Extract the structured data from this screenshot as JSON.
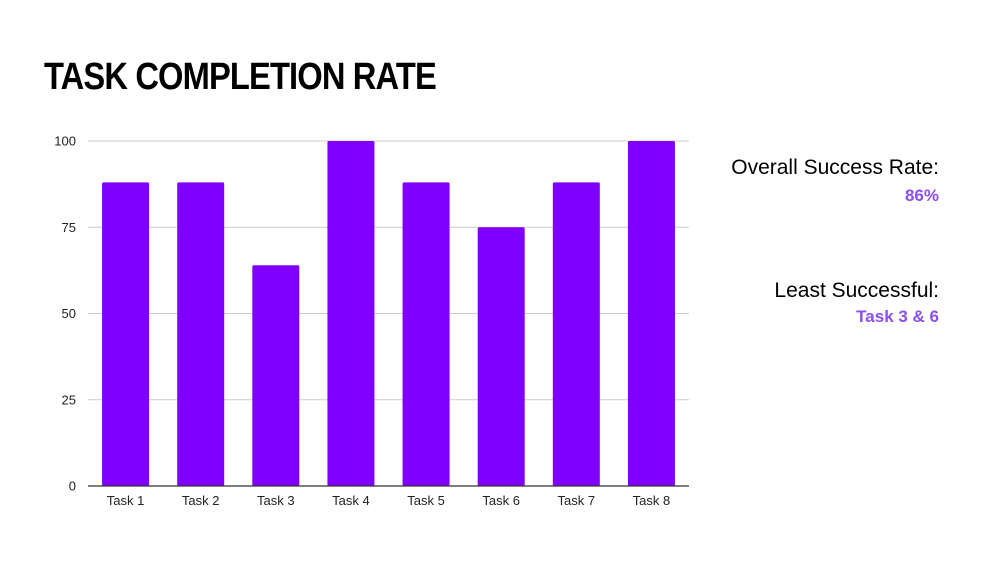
{
  "slide": {
    "title": "TASK COMPLETION RATE"
  },
  "stats": {
    "overall_label": "Overall Success Rate:",
    "overall_value": "86%",
    "least_label": "Least Successful:",
    "least_value": "Task 3 & 6",
    "value_color": "#8a4ff0"
  },
  "chart_data": {
    "type": "bar",
    "categories": [
      "Task 1",
      "Task 2",
      "Task 3",
      "Task 4",
      "Task 5",
      "Task 6",
      "Task 7",
      "Task 8"
    ],
    "values": [
      88,
      88,
      64,
      100,
      88,
      75,
      88,
      100
    ],
    "yticks": [
      0,
      25,
      50,
      75,
      100
    ],
    "ylim": [
      0,
      100
    ],
    "bar_color": "#8000ff",
    "grid": true,
    "legend": "none"
  }
}
